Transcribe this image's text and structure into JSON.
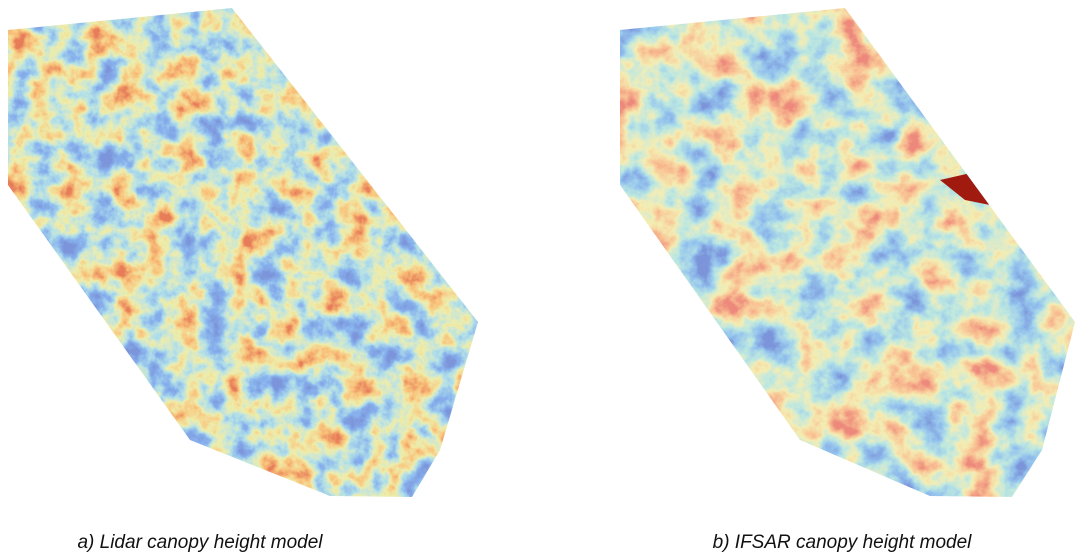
{
  "panels": [
    {
      "caption": "a) Lidar canopy height model"
    },
    {
      "caption": "b) IFSAR canopy height model"
    }
  ]
}
